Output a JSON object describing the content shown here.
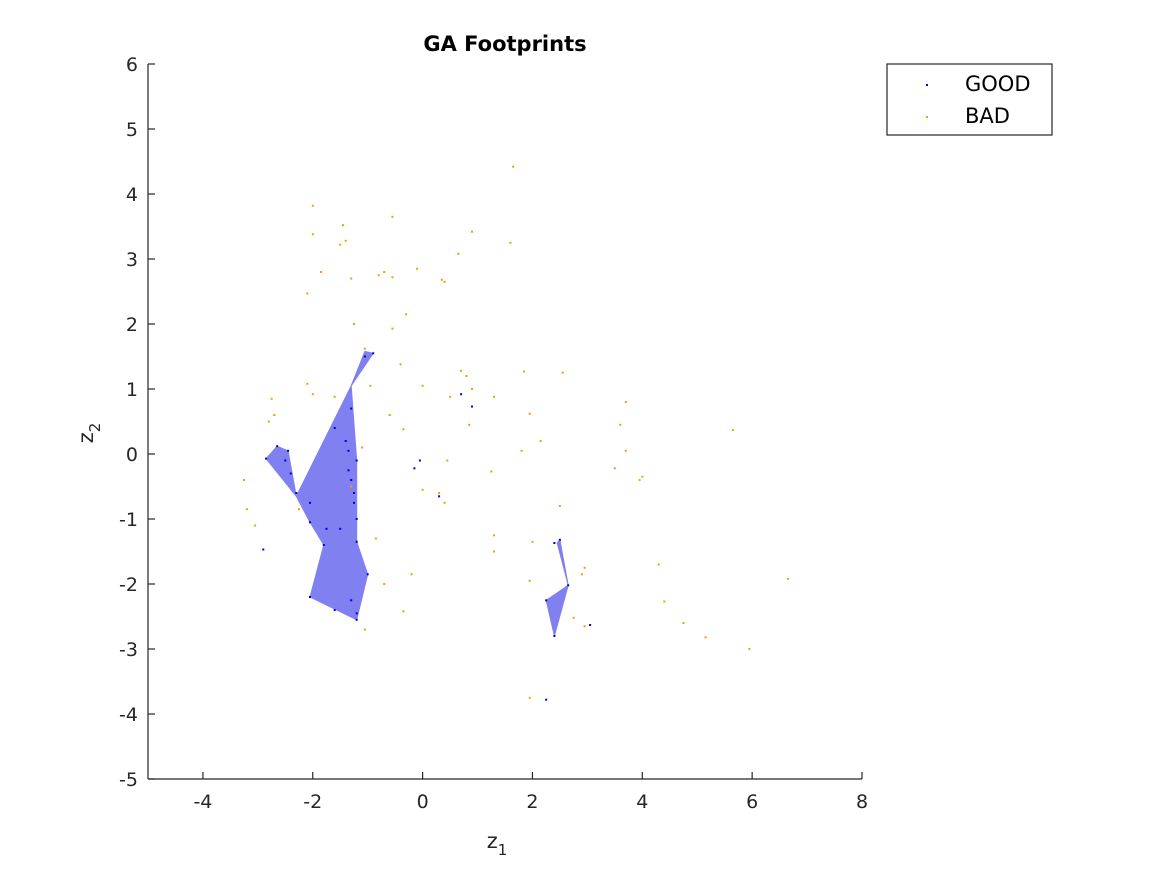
{
  "chart_data": {
    "type": "scatter",
    "title": "GA Footprints",
    "xlabel": "z",
    "xlabel_sub": "1",
    "ylabel": "z",
    "ylabel_sub": "2",
    "xlim": [
      -5,
      8
    ],
    "ylim": [
      -5,
      6
    ],
    "xticks": [
      -4,
      -2,
      0,
      2,
      4,
      6,
      8
    ],
    "yticks": [
      -5,
      -4,
      -3,
      -2,
      -1,
      0,
      1,
      2,
      3,
      4,
      5,
      6
    ],
    "grid": false,
    "legend_position": "top-right",
    "footprint_color": "#8080f0",
    "series": [
      {
        "name": "GOOD",
        "color": "#0000cc",
        "points": [
          [
            -2.65,
            0.12
          ],
          [
            -2.45,
            0.05
          ],
          [
            -2.5,
            -0.1
          ],
          [
            -2.4,
            -0.3
          ],
          [
            -2.3,
            -0.6
          ],
          [
            -2.85,
            -0.07
          ],
          [
            -1.6,
            0.4
          ],
          [
            -1.4,
            0.2
          ],
          [
            -1.35,
            0.05
          ],
          [
            -1.35,
            -0.25
          ],
          [
            -1.3,
            -0.4
          ],
          [
            -1.2,
            -0.1
          ],
          [
            -1.25,
            -0.6
          ],
          [
            -1.25,
            -0.75
          ],
          [
            -1.2,
            -1.0
          ],
          [
            -1.5,
            -1.15
          ],
          [
            -1.75,
            -1.15
          ],
          [
            -1.8,
            -1.4
          ],
          [
            -2.05,
            -1.05
          ],
          [
            -2.05,
            -0.75
          ],
          [
            -1.2,
            -1.35
          ],
          [
            -1.0,
            -1.85
          ],
          [
            -1.3,
            -2.25
          ],
          [
            -1.2,
            -2.45
          ],
          [
            -1.2,
            -2.55
          ],
          [
            -1.6,
            -2.4
          ],
          [
            -2.05,
            -2.2
          ],
          [
            -0.9,
            1.55
          ],
          [
            -1.05,
            1.5
          ],
          [
            -1.3,
            0.7
          ],
          [
            -2.9,
            -1.47
          ],
          [
            -0.15,
            -0.22
          ],
          [
            -0.05,
            -0.1
          ],
          [
            0.3,
            -0.65
          ],
          [
            0.7,
            0.92
          ],
          [
            0.9,
            0.73
          ],
          [
            2.4,
            -1.37
          ],
          [
            2.5,
            -1.32
          ],
          [
            2.65,
            -2.02
          ],
          [
            2.25,
            -2.25
          ],
          [
            2.4,
            -2.8
          ],
          [
            3.05,
            -2.63
          ],
          [
            2.25,
            -3.78
          ]
        ]
      },
      {
        "name": "BAD",
        "color": "#ff9900",
        "points": [
          [
            1.65,
            4.42
          ],
          [
            -2.0,
            3.82
          ],
          [
            -0.55,
            3.65
          ],
          [
            -1.45,
            3.52
          ],
          [
            -2.0,
            3.38
          ],
          [
            0.9,
            3.42
          ],
          [
            -1.4,
            3.28
          ],
          [
            -1.5,
            3.22
          ],
          [
            1.6,
            3.25
          ],
          [
            0.65,
            3.08
          ],
          [
            -1.85,
            2.8
          ],
          [
            -0.1,
            2.85
          ],
          [
            -0.7,
            2.8
          ],
          [
            -0.8,
            2.75
          ],
          [
            -0.55,
            2.72
          ],
          [
            -1.3,
            2.7
          ],
          [
            0.35,
            2.68
          ],
          [
            0.4,
            2.65
          ],
          [
            -2.1,
            2.47
          ],
          [
            -0.3,
            2.15
          ],
          [
            -1.25,
            2.0
          ],
          [
            -0.55,
            1.93
          ],
          [
            -1.05,
            1.62
          ],
          [
            -0.4,
            1.38
          ],
          [
            0.7,
            1.28
          ],
          [
            1.85,
            1.27
          ],
          [
            2.55,
            1.25
          ],
          [
            0.8,
            1.2
          ],
          [
            -2.1,
            1.08
          ],
          [
            -0.95,
            1.05
          ],
          [
            0.0,
            1.05
          ],
          [
            0.9,
            1.0
          ],
          [
            -2.0,
            0.92
          ],
          [
            -1.6,
            0.88
          ],
          [
            0.5,
            0.88
          ],
          [
            1.3,
            0.88
          ],
          [
            -2.75,
            0.85
          ],
          [
            3.7,
            0.8
          ],
          [
            -2.7,
            0.6
          ],
          [
            -0.6,
            0.6
          ],
          [
            1.95,
            0.62
          ],
          [
            -2.8,
            0.5
          ],
          [
            0.85,
            0.45
          ],
          [
            3.6,
            0.45
          ],
          [
            -0.35,
            0.38
          ],
          [
            5.65,
            0.37
          ],
          [
            2.15,
            0.2
          ],
          [
            -1.1,
            0.1
          ],
          [
            1.8,
            0.05
          ],
          [
            3.7,
            0.05
          ],
          [
            0.45,
            -0.1
          ],
          [
            1.25,
            -0.27
          ],
          [
            3.5,
            -0.22
          ],
          [
            4.0,
            -0.35
          ],
          [
            3.95,
            -0.4
          ],
          [
            -3.25,
            -0.4
          ],
          [
            -1.3,
            -0.5
          ],
          [
            0.0,
            -0.55
          ],
          [
            0.3,
            -0.6
          ],
          [
            0.4,
            -0.75
          ],
          [
            2.5,
            -0.8
          ],
          [
            -3.2,
            -0.85
          ],
          [
            -2.25,
            -0.85
          ],
          [
            -3.05,
            -1.1
          ],
          [
            1.3,
            -1.25
          ],
          [
            -0.85,
            -1.3
          ],
          [
            2.0,
            -1.35
          ],
          [
            1.3,
            -1.5
          ],
          [
            4.3,
            -1.7
          ],
          [
            2.95,
            -1.75
          ],
          [
            2.9,
            -1.85
          ],
          [
            -0.2,
            -1.85
          ],
          [
            6.65,
            -1.92
          ],
          [
            1.95,
            -1.95
          ],
          [
            -0.7,
            -2.0
          ],
          [
            4.4,
            -2.27
          ],
          [
            -0.35,
            -2.42
          ],
          [
            2.75,
            -2.52
          ],
          [
            2.95,
            -2.65
          ],
          [
            4.75,
            -2.6
          ],
          [
            -1.05,
            -2.7
          ],
          [
            5.15,
            -2.82
          ],
          [
            5.95,
            -3.0
          ],
          [
            1.95,
            -3.75
          ]
        ]
      }
    ],
    "footprints": [
      [
        [
          -2.85,
          -0.07
        ],
        [
          -2.65,
          0.12
        ],
        [
          -2.45,
          0.05
        ],
        [
          -2.3,
          -0.65
        ]
      ],
      [
        [
          -2.3,
          -0.65
        ],
        [
          -1.3,
          1.05
        ],
        [
          -1.2,
          -0.1
        ],
        [
          -1.2,
          -1.0
        ],
        [
          -1.2,
          -1.35
        ],
        [
          -1.0,
          -1.85
        ],
        [
          -1.2,
          -2.55
        ],
        [
          -2.05,
          -2.2
        ],
        [
          -1.8,
          -1.4
        ],
        [
          -2.05,
          -1.05
        ]
      ],
      [
        [
          -1.3,
          1.05
        ],
        [
          -1.05,
          1.58
        ],
        [
          -0.9,
          1.55
        ]
      ],
      [
        [
          2.45,
          -1.37
        ],
        [
          2.5,
          -1.32
        ],
        [
          2.65,
          -2.02
        ]
      ],
      [
        [
          2.65,
          -2.02
        ],
        [
          2.25,
          -2.25
        ],
        [
          2.4,
          -2.8
        ]
      ]
    ]
  }
}
